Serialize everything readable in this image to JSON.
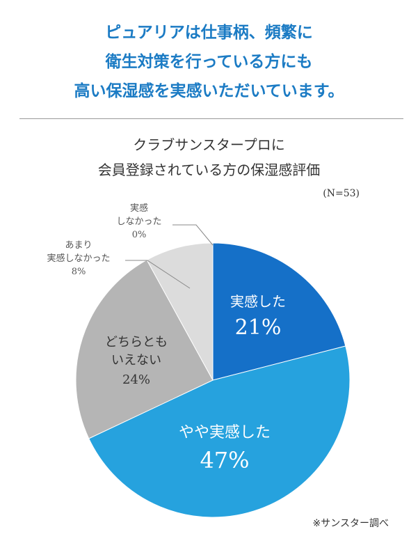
{
  "headline": {
    "lines": [
      "ピュアリアは仕事柄、頻繁に",
      "衛生対策を行っている方にも",
      "高い保湿感を実感いただいています。"
    ]
  },
  "source_note": "※サンスター調べ",
  "chart_data": {
    "type": "pie",
    "title_lines": [
      "クラブサンスタープロに",
      "会員登録されている方の保湿感評価"
    ],
    "sample": "(N=53)",
    "slices": [
      {
        "label_lines": [
          "実感した"
        ],
        "value": 21,
        "value_label": "21%",
        "color": "#1570c8"
      },
      {
        "label_lines": [
          "やや実感した"
        ],
        "value": 47,
        "value_label": "47%",
        "color": "#26a2de"
      },
      {
        "label_lines": [
          "どちらとも",
          "いえない"
        ],
        "value": 24,
        "value_label": "24%",
        "color": "#b5b5b5"
      },
      {
        "label_lines": [
          "あまり",
          "実感しなかった"
        ],
        "value": 8,
        "value_label": "8%",
        "color": "#dcdcdc"
      },
      {
        "label_lines": [
          "実感",
          "しなかった"
        ],
        "value": 0,
        "value_label": "0%",
        "color": "#eeeeee"
      }
    ]
  }
}
